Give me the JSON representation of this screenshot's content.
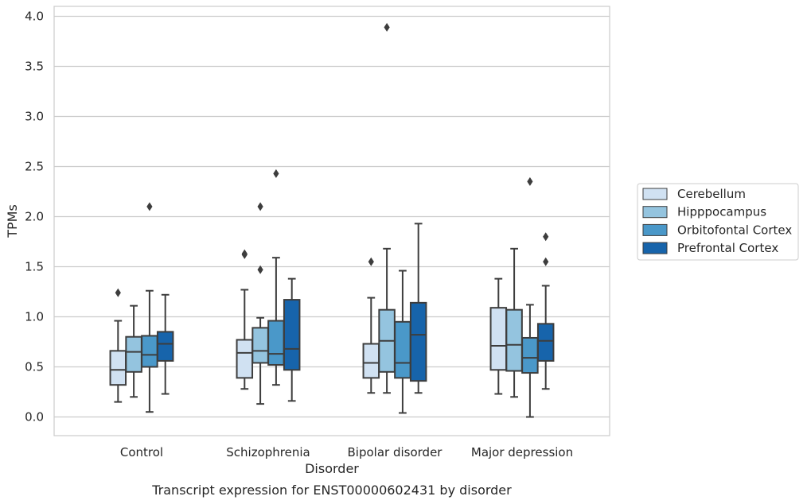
{
  "chart_data": {
    "type": "box",
    "title": "",
    "caption": "Transcript expression for ENST00000602431 by disorder",
    "xlabel": "Disorder",
    "ylabel": "TPMs",
    "ylim": [
      -0.18,
      4.1
    ],
    "yticks": [
      0.0,
      0.5,
      1.0,
      1.5,
      2.0,
      2.5,
      3.0,
      3.5,
      4.0
    ],
    "ytick_labels": [
      "0.0",
      "0.5",
      "1.0",
      "1.5",
      "2.0",
      "2.5",
      "3.0",
      "3.5",
      "4.0"
    ],
    "grid": "horizontal",
    "legend_position": "outside-right",
    "categories": [
      "Control",
      "Schizophrenia",
      "Bipolar disorder",
      "Major depression"
    ],
    "series": [
      {
        "name": "Cerebellum",
        "color": "#d0e1f2",
        "boxes": [
          {
            "whisker_low": 0.15,
            "q1": 0.32,
            "median": 0.47,
            "q3": 0.66,
            "whisker_high": 0.96,
            "outliers": [
              1.24
            ]
          },
          {
            "whisker_low": 0.28,
            "q1": 0.39,
            "median": 0.64,
            "q3": 0.77,
            "whisker_high": 1.27,
            "outliers": [
              1.62,
              1.63
            ]
          },
          {
            "whisker_low": 0.24,
            "q1": 0.39,
            "median": 0.54,
            "q3": 0.73,
            "whisker_high": 1.19,
            "outliers": [
              1.55
            ]
          },
          {
            "whisker_low": 0.23,
            "q1": 0.47,
            "median": 0.71,
            "q3": 1.09,
            "whisker_high": 1.38,
            "outliers": []
          }
        ]
      },
      {
        "name": "Hipppocampus",
        "color": "#94c4df",
        "boxes": [
          {
            "whisker_low": 0.2,
            "q1": 0.45,
            "median": 0.65,
            "q3": 0.8,
            "whisker_high": 1.11,
            "outliers": []
          },
          {
            "whisker_low": 0.13,
            "q1": 0.54,
            "median": 0.66,
            "q3": 0.89,
            "whisker_high": 0.99,
            "outliers": [
              1.47,
              2.1
            ]
          },
          {
            "whisker_low": 0.24,
            "q1": 0.45,
            "median": 0.76,
            "q3": 1.07,
            "whisker_high": 1.68,
            "outliers": [
              3.89
            ]
          },
          {
            "whisker_low": 0.2,
            "q1": 0.46,
            "median": 0.72,
            "q3": 1.07,
            "whisker_high": 1.68,
            "outliers": []
          }
        ]
      },
      {
        "name": "Orbitofontal Cortex",
        "color": "#4a98c9",
        "boxes": [
          {
            "whisker_low": 0.05,
            "q1": 0.5,
            "median": 0.62,
            "q3": 0.81,
            "whisker_high": 1.26,
            "outliers": [
              2.1
            ]
          },
          {
            "whisker_low": 0.32,
            "q1": 0.52,
            "median": 0.63,
            "q3": 0.96,
            "whisker_high": 1.59,
            "outliers": [
              2.43
            ]
          },
          {
            "whisker_low": 0.04,
            "q1": 0.39,
            "median": 0.54,
            "q3": 0.95,
            "whisker_high": 1.46,
            "outliers": []
          },
          {
            "whisker_low": 0.0,
            "q1": 0.44,
            "median": 0.59,
            "q3": 0.79,
            "whisker_high": 1.12,
            "outliers": [
              2.35
            ]
          }
        ]
      },
      {
        "name": "Prefrontal Cortex",
        "color": "#1764ab",
        "boxes": [
          {
            "whisker_low": 0.23,
            "q1": 0.56,
            "median": 0.73,
            "q3": 0.85,
            "whisker_high": 1.22,
            "outliers": []
          },
          {
            "whisker_low": 0.16,
            "q1": 0.47,
            "median": 0.68,
            "q3": 1.17,
            "whisker_high": 1.38,
            "outliers": []
          },
          {
            "whisker_low": 0.24,
            "q1": 0.36,
            "median": 0.82,
            "q3": 1.14,
            "whisker_high": 1.93,
            "outliers": []
          },
          {
            "whisker_low": 0.28,
            "q1": 0.56,
            "median": 0.76,
            "q3": 0.93,
            "whisker_high": 1.31,
            "outliers": [
              1.55,
              1.8
            ]
          }
        ]
      }
    ]
  }
}
